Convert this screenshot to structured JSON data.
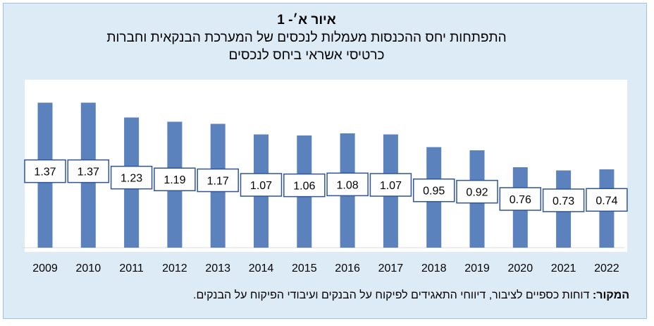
{
  "figure": {
    "number_label": "איור א׳- 1",
    "title_line1": "התפתחות יחס ההכנסות מעמלות לנכסים של המערכת הבנקאית וחברות",
    "title_line2": "כרטיסי אשראי ביחס לנכסים"
  },
  "source": {
    "label": "המקור:",
    "text": "דוחות כספיים לציבור, דיווחי התאגידים לפיקוח על הבנקים ועיבודי הפיקוח על הבנקים."
  },
  "colors": {
    "bar": "#5b82bd",
    "panel": "#ddebf7",
    "label_border": "#2f5597"
  },
  "chart_data": {
    "type": "bar",
    "categories": [
      "2009",
      "2010",
      "2011",
      "2012",
      "2013",
      "2014",
      "2015",
      "2016",
      "2017",
      "2018",
      "2019",
      "2020",
      "2021",
      "2022"
    ],
    "values": [
      1.37,
      1.37,
      1.23,
      1.19,
      1.17,
      1.07,
      1.06,
      1.08,
      1.07,
      0.95,
      0.92,
      0.76,
      0.73,
      0.74
    ],
    "value_labels": [
      "1.37",
      "1.37",
      "1.23",
      "1.19",
      "1.17",
      "1.07",
      "1.06",
      "1.08",
      "1.07",
      "0.95",
      "0.92",
      "0.76",
      "0.73",
      "0.74"
    ],
    "ylim": [
      0,
      1.4
    ],
    "grid": false,
    "legend": "none",
    "xlabel": "",
    "ylabel": ""
  }
}
